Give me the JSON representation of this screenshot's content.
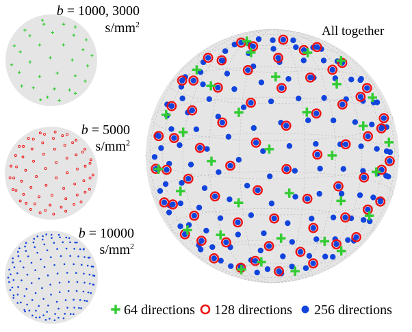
{
  "labels": {
    "b_prefix": "b",
    "b1_value": "= 1000, 3000",
    "b2_value": "= 5000",
    "b3_value": "= 10000",
    "unit": "s/mm",
    "unit_exp": "2",
    "all_together": "All together"
  },
  "legend": {
    "dir64": "64 directions",
    "dir128": "128 directions",
    "dir256": "256 directions"
  },
  "colors": {
    "sphere_fill": "#e5e5e5",
    "green": "#33cc33",
    "red": "#ee1111",
    "blue": "#1144dd"
  },
  "counts": {
    "green": 64,
    "red": 128,
    "blue": 256
  }
}
